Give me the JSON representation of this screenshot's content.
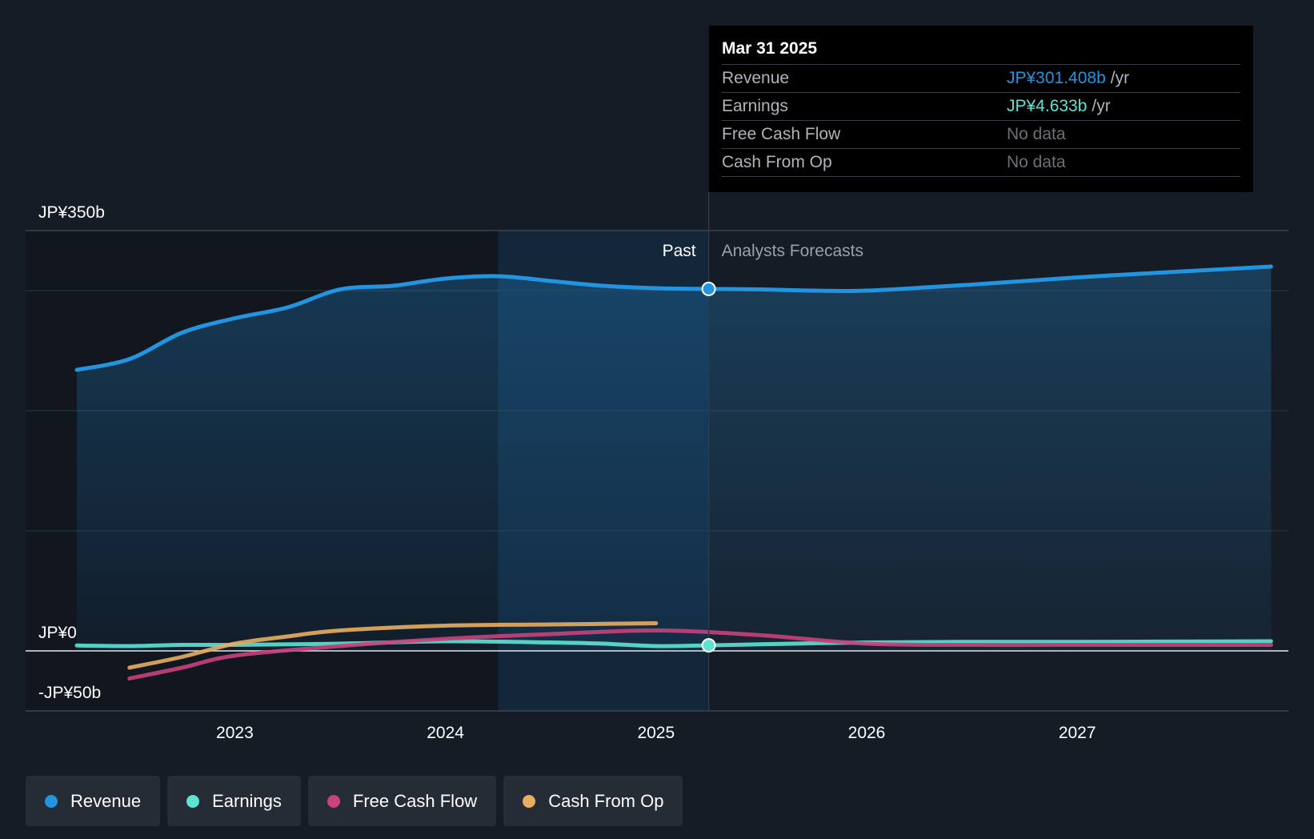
{
  "chart_data": {
    "type": "line",
    "x_range": [
      2022.25,
      2027.92
    ],
    "ylim": [
      -50,
      350
    ],
    "y_ticks": [
      {
        "value": 350,
        "label": "JP¥350b"
      },
      {
        "value": 0,
        "label": "JP¥0"
      },
      {
        "value": -50,
        "label": "-JP¥50b"
      }
    ],
    "x_ticks": [
      {
        "value": 2023,
        "label": "2023"
      },
      {
        "value": 2024,
        "label": "2024"
      },
      {
        "value": 2025,
        "label": "2025"
      },
      {
        "value": 2026,
        "label": "2026"
      },
      {
        "value": 2027,
        "label": "2027"
      }
    ],
    "grid_values": [
      300,
      200,
      100
    ],
    "past_label": "Past",
    "forecast_label": "Analysts Forecasts",
    "highlight_start": 2024.25,
    "divider_x": 2025.25,
    "series": [
      {
        "name": "Revenue",
        "color": "#2394df",
        "area": true,
        "points": [
          [
            2022.25,
            234
          ],
          [
            2022.5,
            243
          ],
          [
            2022.75,
            265
          ],
          [
            2023,
            277
          ],
          [
            2023.25,
            286
          ],
          [
            2023.5,
            301
          ],
          [
            2023.75,
            304
          ],
          [
            2024,
            310
          ],
          [
            2024.25,
            312
          ],
          [
            2024.5,
            308
          ],
          [
            2024.75,
            304
          ],
          [
            2025,
            302
          ],
          [
            2025.25,
            301.4
          ],
          [
            2025.5,
            301
          ],
          [
            2025.75,
            300
          ],
          [
            2026,
            300
          ],
          [
            2026.5,
            305
          ],
          [
            2027,
            311
          ],
          [
            2027.5,
            316
          ],
          [
            2027.92,
            320
          ]
        ]
      },
      {
        "name": "Earnings",
        "color": "#5ee3d3",
        "points": [
          [
            2022.25,
            4.5
          ],
          [
            2022.5,
            4
          ],
          [
            2022.75,
            5
          ],
          [
            2023,
            5
          ],
          [
            2023.5,
            6
          ],
          [
            2024,
            8
          ],
          [
            2024.5,
            7
          ],
          [
            2024.75,
            6
          ],
          [
            2025,
            4
          ],
          [
            2025.25,
            4.6
          ],
          [
            2025.5,
            5.5
          ],
          [
            2026,
            7
          ],
          [
            2026.5,
            7.5
          ],
          [
            2027,
            7.5
          ],
          [
            2027.92,
            8
          ]
        ]
      },
      {
        "name": "Free Cash Flow",
        "color": "#c7437c",
        "points": [
          [
            2022.5,
            -23
          ],
          [
            2022.75,
            -14
          ],
          [
            2023,
            -4
          ],
          [
            2023.5,
            4
          ],
          [
            2024,
            10
          ],
          [
            2024.5,
            14
          ],
          [
            2025,
            17
          ],
          [
            2025.5,
            13
          ],
          [
            2026,
            6
          ],
          [
            2026.5,
            5
          ],
          [
            2027,
            5
          ],
          [
            2027.92,
            5
          ]
        ]
      },
      {
        "name": "Cash From Op",
        "color": "#e8ad63",
        "points": [
          [
            2022.5,
            -14
          ],
          [
            2022.75,
            -5
          ],
          [
            2023,
            6
          ],
          [
            2023.25,
            12
          ],
          [
            2023.5,
            17
          ],
          [
            2024,
            21
          ],
          [
            2024.5,
            22
          ],
          [
            2025,
            23
          ]
        ]
      }
    ]
  },
  "tooltip": {
    "date": "Mar 31 2025",
    "rows": [
      {
        "label": "Revenue",
        "value": "JP¥301.408b",
        "unit": "/yr",
        "color": "#2394df"
      },
      {
        "label": "Earnings",
        "value": "JP¥4.633b",
        "unit": "/yr",
        "color": "#5ee3d3"
      },
      {
        "label": "Free Cash Flow",
        "value": "No data",
        "unit": "",
        "color": "#6b7078"
      },
      {
        "label": "Cash From Op",
        "value": "No data",
        "unit": "",
        "color": "#6b7078"
      }
    ]
  },
  "legend": [
    {
      "label": "Revenue",
      "color": "#2394df"
    },
    {
      "label": "Earnings",
      "color": "#5ee3d3"
    },
    {
      "label": "Free Cash Flow",
      "color": "#c7437c"
    },
    {
      "label": "Cash From Op",
      "color": "#e8ad63"
    }
  ]
}
